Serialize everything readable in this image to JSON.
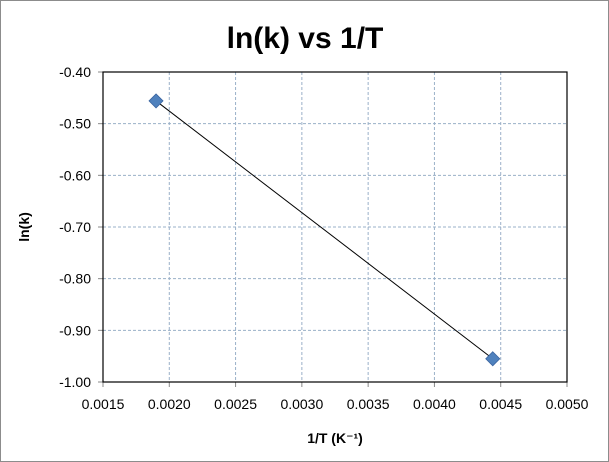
{
  "chart_data": {
    "type": "scatter",
    "title": "ln(k) vs 1/T",
    "xlabel": "1/T (K⁻¹)",
    "ylabel": "ln(k)",
    "xlim": [
      0.0015,
      0.005
    ],
    "ylim": [
      -1.0,
      -0.4
    ],
    "xticks": [
      "0.0015",
      "0.0020",
      "0.0025",
      "0.0030",
      "0.0035",
      "0.0040",
      "0.0045",
      "0.0050"
    ],
    "yticks": [
      "-0.40",
      "-0.50",
      "-0.60",
      "-0.70",
      "-0.80",
      "-0.90",
      "-1.00"
    ],
    "grid": true,
    "legend": "none",
    "series": [
      {
        "name": "ln(k)",
        "x": [
          0.0019,
          0.00444
        ],
        "y": [
          -0.456,
          -0.955
        ],
        "marker": "diamond",
        "color": "#4f81bd",
        "trendline": true,
        "trendline_color": "#000000"
      }
    ]
  }
}
